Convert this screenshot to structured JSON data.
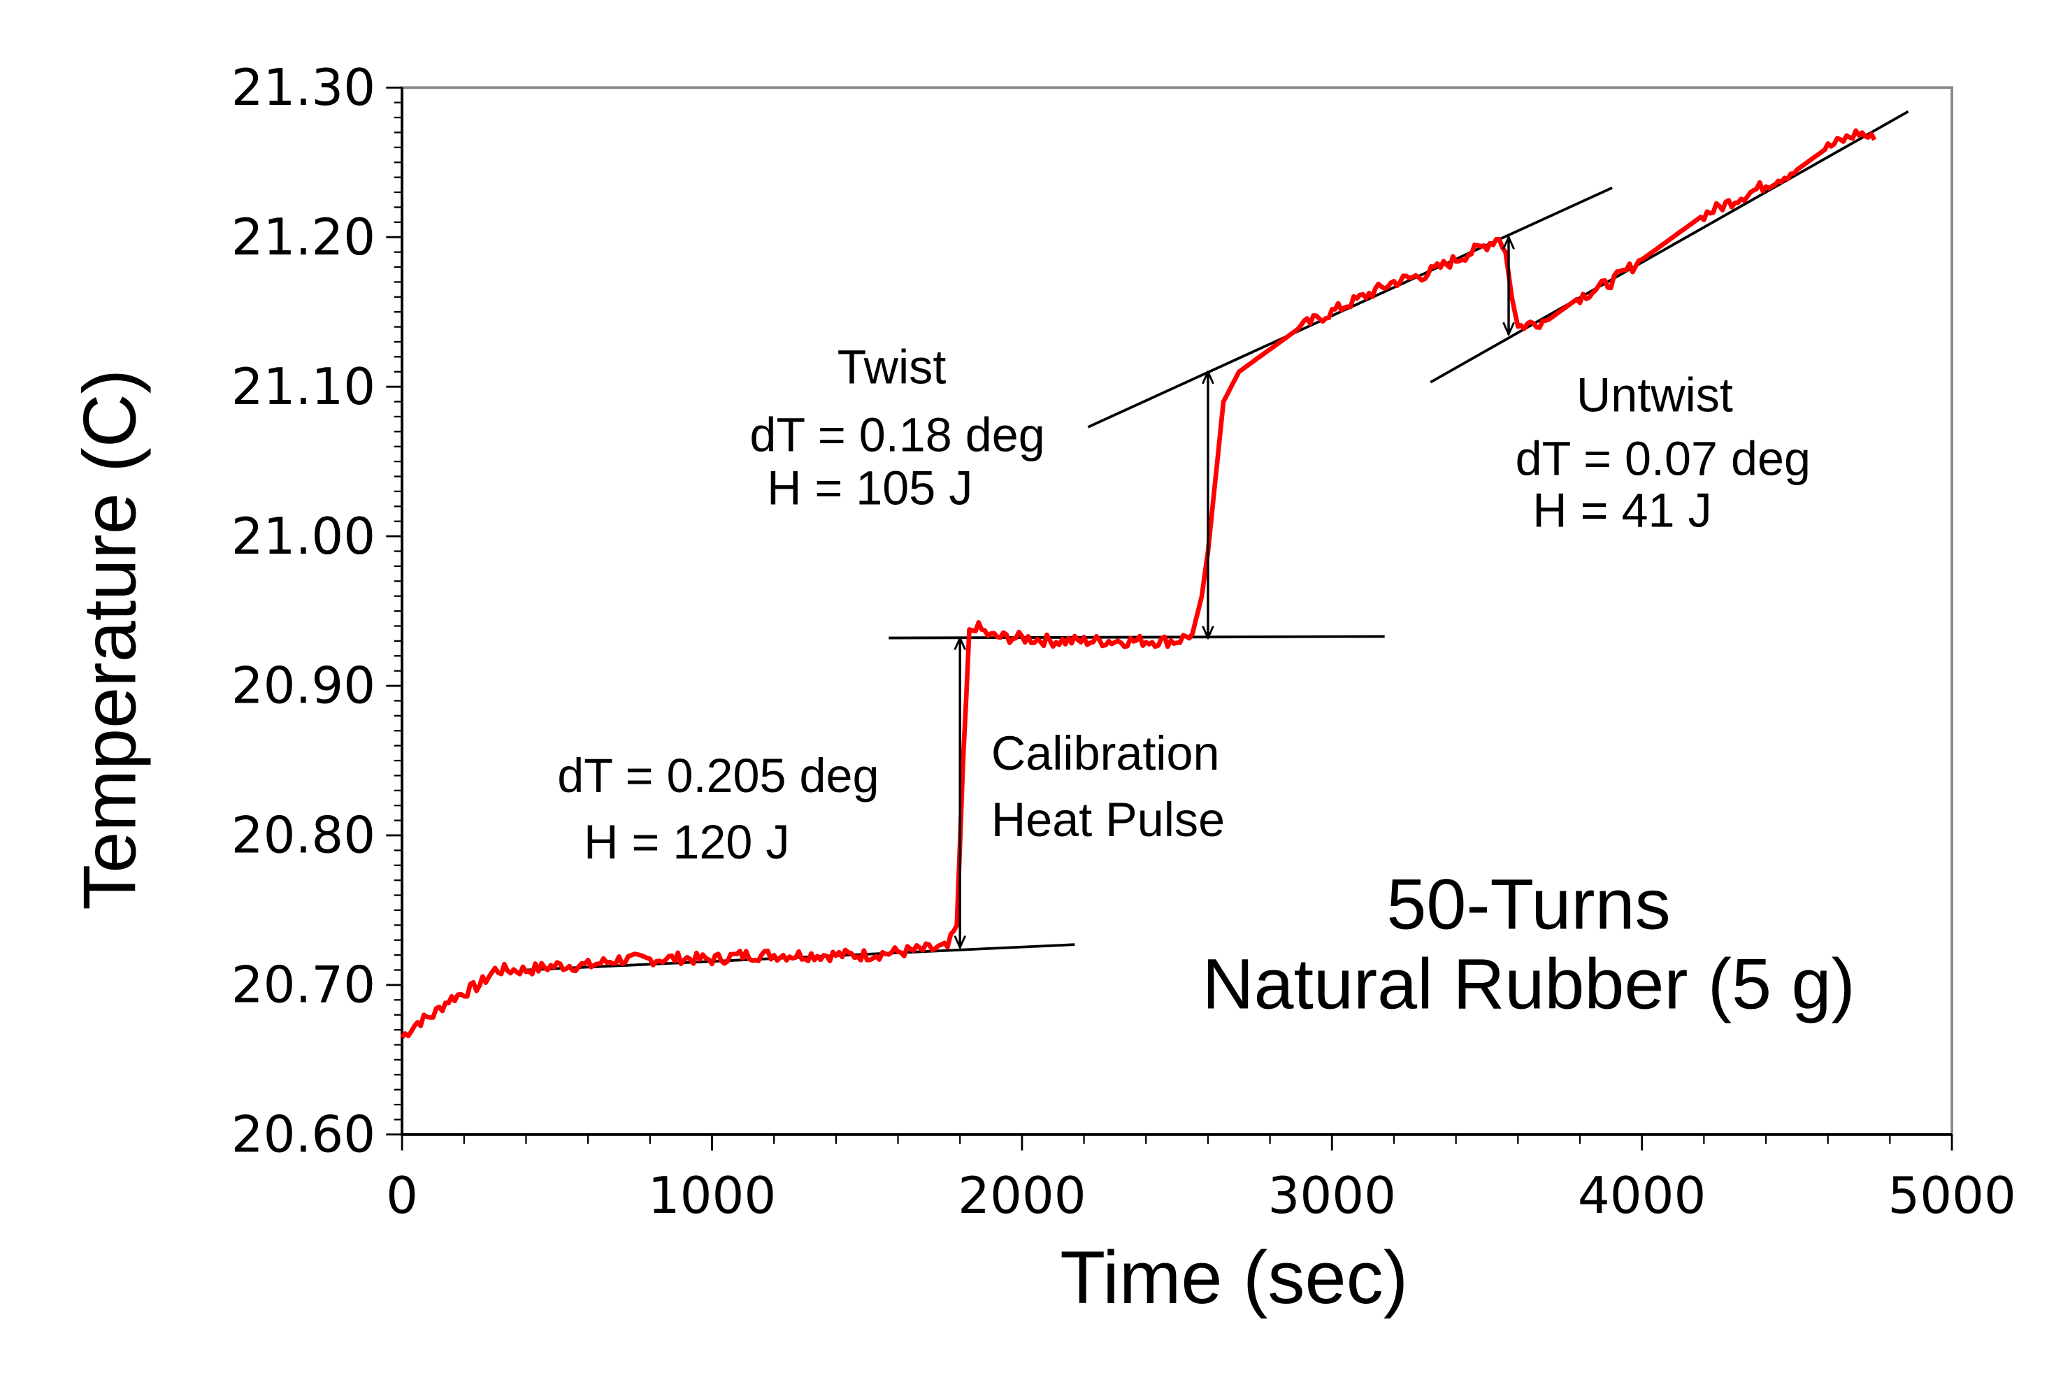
{
  "chart_data": {
    "type": "line",
    "title": "",
    "xlabel": "Time (sec)",
    "ylabel": "Temperature (C)",
    "xlim": [
      0,
      5000
    ],
    "ylim": [
      20.6,
      21.3
    ],
    "xticks": [
      "0",
      "1000",
      "2000",
      "3000",
      "4000",
      "5000"
    ],
    "yticks": [
      "20.60",
      "20.70",
      "20.80",
      "20.90",
      "21.00",
      "21.10",
      "21.20",
      "21.30"
    ],
    "grid": false,
    "series": [
      {
        "name": "Temperature",
        "color": "#ff0000",
        "x": [
          0,
          50,
          100,
          150,
          200,
          250,
          300,
          400,
          500,
          600,
          700,
          800,
          900,
          1000,
          1100,
          1200,
          1300,
          1400,
          1500,
          1600,
          1700,
          1760,
          1790,
          1810,
          1830,
          1850,
          1900,
          2000,
          2100,
          2200,
          2300,
          2400,
          2500,
          2550,
          2580,
          2600,
          2620,
          2650,
          2700,
          2800,
          2900,
          3000,
          3100,
          3200,
          3300,
          3400,
          3500,
          3540,
          3560,
          3580,
          3600,
          3700,
          3800,
          3900,
          4000,
          4100,
          4200,
          4300,
          4400,
          4500,
          4600,
          4700,
          4750
        ],
        "y": [
          20.665,
          20.675,
          20.68,
          20.69,
          20.695,
          20.7,
          20.71,
          20.71,
          20.713,
          20.713,
          20.717,
          20.717,
          20.718,
          20.717,
          20.72,
          20.72,
          20.72,
          20.72,
          20.72,
          20.722,
          20.724,
          20.725,
          20.74,
          20.85,
          20.935,
          20.94,
          20.933,
          20.932,
          20.93,
          20.93,
          20.93,
          20.93,
          20.93,
          20.935,
          20.96,
          20.99,
          21.03,
          21.09,
          21.11,
          21.125,
          21.14,
          21.15,
          21.16,
          21.17,
          21.175,
          21.185,
          21.195,
          21.2,
          21.19,
          21.16,
          21.14,
          21.145,
          21.16,
          21.17,
          21.185,
          21.2,
          21.215,
          21.225,
          21.235,
          21.245,
          21.26,
          21.27,
          21.265
        ]
      }
    ],
    "fit_lines": [
      {
        "x": [
          400,
          2170
        ],
        "y": [
          20.71,
          20.727
        ]
      },
      {
        "x": [
          1570,
          3170
        ],
        "y": [
          20.932,
          20.933
        ]
      },
      {
        "x": [
          2213,
          3904
        ],
        "y": [
          21.073,
          21.233
        ]
      },
      {
        "x": [
          3318,
          4859
        ],
        "y": [
          21.103,
          21.284
        ]
      }
    ],
    "arrows": [
      {
        "x": 1800,
        "y": [
          20.725,
          20.932
        ]
      },
      {
        "x": 2600,
        "y": [
          20.932,
          21.11
        ]
      },
      {
        "x": 3570,
        "y": [
          21.2,
          21.135
        ]
      }
    ],
    "annotations": {
      "twist": [
        "Twist",
        "dT = 0.18 deg",
        "H = 105 J"
      ],
      "untwist": [
        "Untwist",
        "dT = 0.07 deg",
        "H = 41 J"
      ],
      "calib_values": [
        "dT = 0.205 deg",
        "H = 120 J"
      ],
      "calib_label": [
        "Calibration",
        "Heat Pulse"
      ],
      "sample": [
        "50-Turns",
        "Natural Rubber (5 g)"
      ]
    }
  }
}
